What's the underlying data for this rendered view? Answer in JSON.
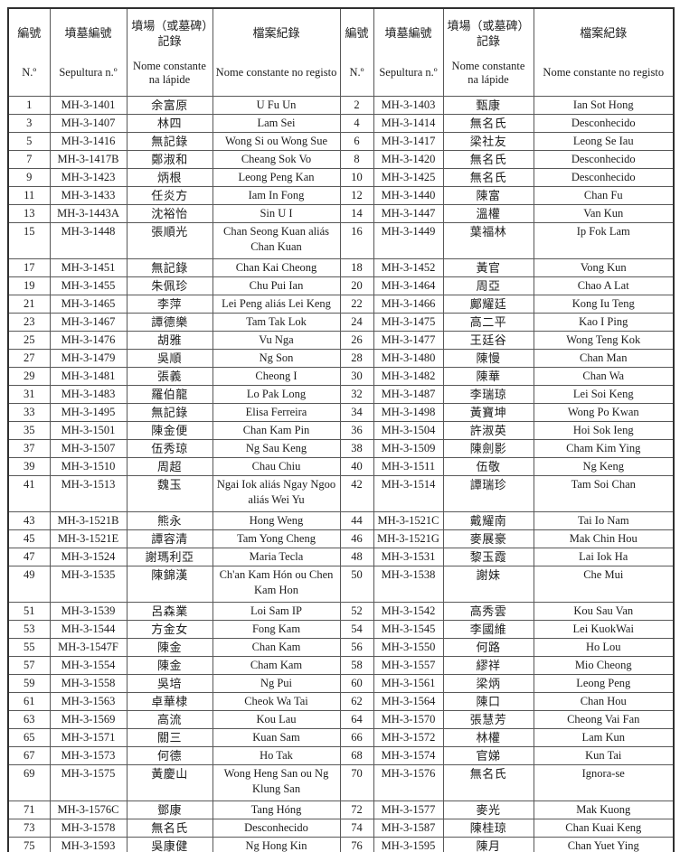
{
  "page": {
    "background": "#ffffff",
    "outer_border_color": "#2f2f2f",
    "grid_color": "#585858",
    "text_color": "#1c1c1c"
  },
  "columns": [
    {
      "zh": "編號",
      "pt": "N.º"
    },
    {
      "zh": "墳墓編號",
      "pt": "Sepultura n.º"
    },
    {
      "zh": "墳場（或墓碑）記錄",
      "pt": "Nome constante na lápide"
    },
    {
      "zh": "檔案紀錄",
      "pt": "Nome constante no registo"
    }
  ],
  "rows": [
    {
      "tall": false,
      "cells": [
        "1",
        "MH-3-1401",
        "余富原",
        "U Fu Un",
        "2",
        "MH-3-1403",
        "甄康",
        "Ian Sot Hong"
      ]
    },
    {
      "tall": false,
      "cells": [
        "3",
        "MH-3-1407",
        "林四",
        "Lam Sei",
        "4",
        "MH-3-1414",
        "無名氏",
        "Desconhecido"
      ]
    },
    {
      "tall": false,
      "cells": [
        "5",
        "MH-3-1416",
        "無記錄",
        "Wong Si ou Wong Sue",
        "6",
        "MH-3-1417",
        "梁社友",
        "Leong Se Iau"
      ]
    },
    {
      "tall": false,
      "cells": [
        "7",
        "MH-3-1417B",
        "鄭淑和",
        "Cheang Sok Vo",
        "8",
        "MH-3-1420",
        "無名氏",
        "Desconhecido"
      ]
    },
    {
      "tall": false,
      "cells": [
        "9",
        "MH-3-1423",
        "炳根",
        "Leong Peng Kan",
        "10",
        "MH-3-1425",
        "無名氏",
        "Desconhecido"
      ]
    },
    {
      "tall": false,
      "cells": [
        "11",
        "MH-3-1433",
        "任炎方",
        "Iam In Fong",
        "12",
        "MH-3-1440",
        "陳富",
        "Chan Fu"
      ]
    },
    {
      "tall": false,
      "cells": [
        "13",
        "MH-3-1443A",
        "沈裕怡",
        "Sin U I",
        "14",
        "MH-3-1447",
        "溫權",
        "Van Kun"
      ]
    },
    {
      "tall": true,
      "cells": [
        "15",
        "MH-3-1448",
        "張順光",
        "Chan Seong Kuan aliás Chan Kuan",
        "16",
        "MH-3-1449",
        "葉福林",
        "Ip Fok Lam"
      ]
    },
    {
      "tall": false,
      "cells": [
        "17",
        "MH-3-1451",
        "無記錄",
        "Chan Kai Cheong",
        "18",
        "MH-3-1452",
        "黃官",
        "Vong Kun"
      ]
    },
    {
      "tall": false,
      "cells": [
        "19",
        "MH-3-1455",
        "朱佩珍",
        "Chu Pui Ian",
        "20",
        "MH-3-1464",
        "周亞",
        "Chao A Lat"
      ]
    },
    {
      "tall": false,
      "cells": [
        "21",
        "MH-3-1465",
        "李萍",
        "Lei Peng aliás Lei Keng",
        "22",
        "MH-3-1466",
        "鄺耀廷",
        "Kong Iu Teng"
      ]
    },
    {
      "tall": false,
      "cells": [
        "23",
        "MH-3-1467",
        "譚德樂",
        "Tam Tak Lok",
        "24",
        "MH-3-1475",
        "高二平",
        "Kao I Ping"
      ]
    },
    {
      "tall": false,
      "cells": [
        "25",
        "MH-3-1476",
        "胡雅",
        "Vu Nga",
        "26",
        "MH-3-1477",
        "王廷谷",
        "Wong Teng Kok"
      ]
    },
    {
      "tall": false,
      "cells": [
        "27",
        "MH-3-1479",
        "吳順",
        "Ng Son",
        "28",
        "MH-3-1480",
        "陳慢",
        "Chan Man"
      ]
    },
    {
      "tall": false,
      "cells": [
        "29",
        "MH-3-1481",
        "張義",
        "Cheong I",
        "30",
        "MH-3-1482",
        "陳華",
        "Chan Wa"
      ]
    },
    {
      "tall": false,
      "cells": [
        "31",
        "MH-3-1483",
        "羅伯龍",
        "Lo Pak Long",
        "32",
        "MH-3-1487",
        "李瑞琼",
        "Lei Soi Keng"
      ]
    },
    {
      "tall": false,
      "cells": [
        "33",
        "MH-3-1495",
        "無記錄",
        "Elisa Ferreira",
        "34",
        "MH-3-1498",
        "黃寶坤",
        "Wong Po Kwan"
      ]
    },
    {
      "tall": false,
      "cells": [
        "35",
        "MH-3-1501",
        "陳金便",
        "Chan Kam Pin",
        "36",
        "MH-3-1504",
        "許淑英",
        "Hoi Sok Ieng"
      ]
    },
    {
      "tall": false,
      "cells": [
        "37",
        "MH-3-1507",
        "伍秀琼",
        "Ng Sau Keng",
        "38",
        "MH-3-1509",
        "陳劍影",
        "Cham Kim Ying"
      ]
    },
    {
      "tall": false,
      "cells": [
        "39",
        "MH-3-1510",
        "周超",
        "Chau Chiu",
        "40",
        "MH-3-1511",
        "伍敬",
        "Ng Keng"
      ]
    },
    {
      "tall": true,
      "cells": [
        "41",
        "MH-3-1513",
        "魏玉",
        "Ngai Iok aliás Ngay Ngoo aliás Wei Yu",
        "42",
        "MH-3-1514",
        "譚瑞珍",
        "Tam Soi Chan"
      ]
    },
    {
      "tall": false,
      "cells": [
        "43",
        "MH-3-1521B",
        "熊永",
        "Hong Weng",
        "44",
        "MH-3-1521C",
        "戴耀南",
        "Tai Io Nam"
      ]
    },
    {
      "tall": false,
      "cells": [
        "45",
        "MH-3-1521E",
        "譚容清",
        "Tam Yong Cheng",
        "46",
        "MH-3-1521G",
        "麥展豪",
        "Mak Chin Hou"
      ]
    },
    {
      "tall": false,
      "cells": [
        "47",
        "MH-3-1524",
        "謝瑪利亞",
        "Maria Tecla",
        "48",
        "MH-3-1531",
        "黎玉霞",
        "Lai Iok Ha"
      ]
    },
    {
      "tall": true,
      "cells": [
        "49",
        "MH-3-1535",
        "陳錦漢",
        "Ch'an Kam Hón ou Chen Kam Hon",
        "50",
        "MH-3-1538",
        "謝妹",
        "Che Mui"
      ]
    },
    {
      "tall": false,
      "cells": [
        "51",
        "MH-3-1539",
        "呂森業",
        "Loi Sam IP",
        "52",
        "MH-3-1542",
        "高秀雲",
        "Kou Sau Van"
      ]
    },
    {
      "tall": false,
      "cells": [
        "53",
        "MH-3-1544",
        "方金女",
        "Fong Kam",
        "54",
        "MH-3-1545",
        "李國維",
        "Lei KuokWai"
      ]
    },
    {
      "tall": false,
      "cells": [
        "55",
        "MH-3-1547F",
        "陳金",
        "Chan Kam",
        "56",
        "MH-3-1550",
        "何路",
        "Ho Lou"
      ]
    },
    {
      "tall": false,
      "cells": [
        "57",
        "MH-3-1554",
        "陳金",
        "Cham Kam",
        "58",
        "MH-3-1557",
        "繆祥",
        "Mio Cheong"
      ]
    },
    {
      "tall": false,
      "cells": [
        "59",
        "MH-3-1558",
        "吳培",
        "Ng Pui",
        "60",
        "MH-3-1561",
        "梁炳",
        "Leong Peng"
      ]
    },
    {
      "tall": false,
      "cells": [
        "61",
        "MH-3-1563",
        "卓華棣",
        "Cheok Wa Tai",
        "62",
        "MH-3-1564",
        "陳口",
        "Chan Hou"
      ]
    },
    {
      "tall": false,
      "cells": [
        "63",
        "MH-3-1569",
        "高流",
        "Kou Lau",
        "64",
        "MH-3-1570",
        "張慧芳",
        "Cheong Vai Fan"
      ]
    },
    {
      "tall": false,
      "cells": [
        "65",
        "MH-3-1571",
        "關三",
        "Kuan Sam",
        "66",
        "MH-3-1572",
        "林權",
        "Lam Kun"
      ]
    },
    {
      "tall": false,
      "cells": [
        "67",
        "MH-3-1573",
        "何德",
        "Ho Tak",
        "68",
        "MH-3-1574",
        "官娣",
        "Kun Tai"
      ]
    },
    {
      "tall": true,
      "cells": [
        "69",
        "MH-3-1575",
        "黃慶山",
        "Wong Heng San ou Ng Klung San",
        "70",
        "MH-3-1576",
        "無名氏",
        "Ignora-se"
      ]
    },
    {
      "tall": false,
      "cells": [
        "71",
        "MH-3-1576C",
        "鄧康",
        "Tang Hóng",
        "72",
        "MH-3-1577",
        "麥光",
        "Mak Kuong"
      ]
    },
    {
      "tall": false,
      "cells": [
        "73",
        "MH-3-1578",
        "無名氏",
        "Desconhecido",
        "74",
        "MH-3-1587",
        "陳桂琼",
        "Chan Kuai Keng"
      ]
    },
    {
      "tall": false,
      "cells": [
        "75",
        "MH-3-1593",
        "吳康健",
        "Ng Hong Kin",
        "76",
        "MH-3-1595",
        "陳月",
        "Chan Yuet Ying"
      ]
    }
  ]
}
